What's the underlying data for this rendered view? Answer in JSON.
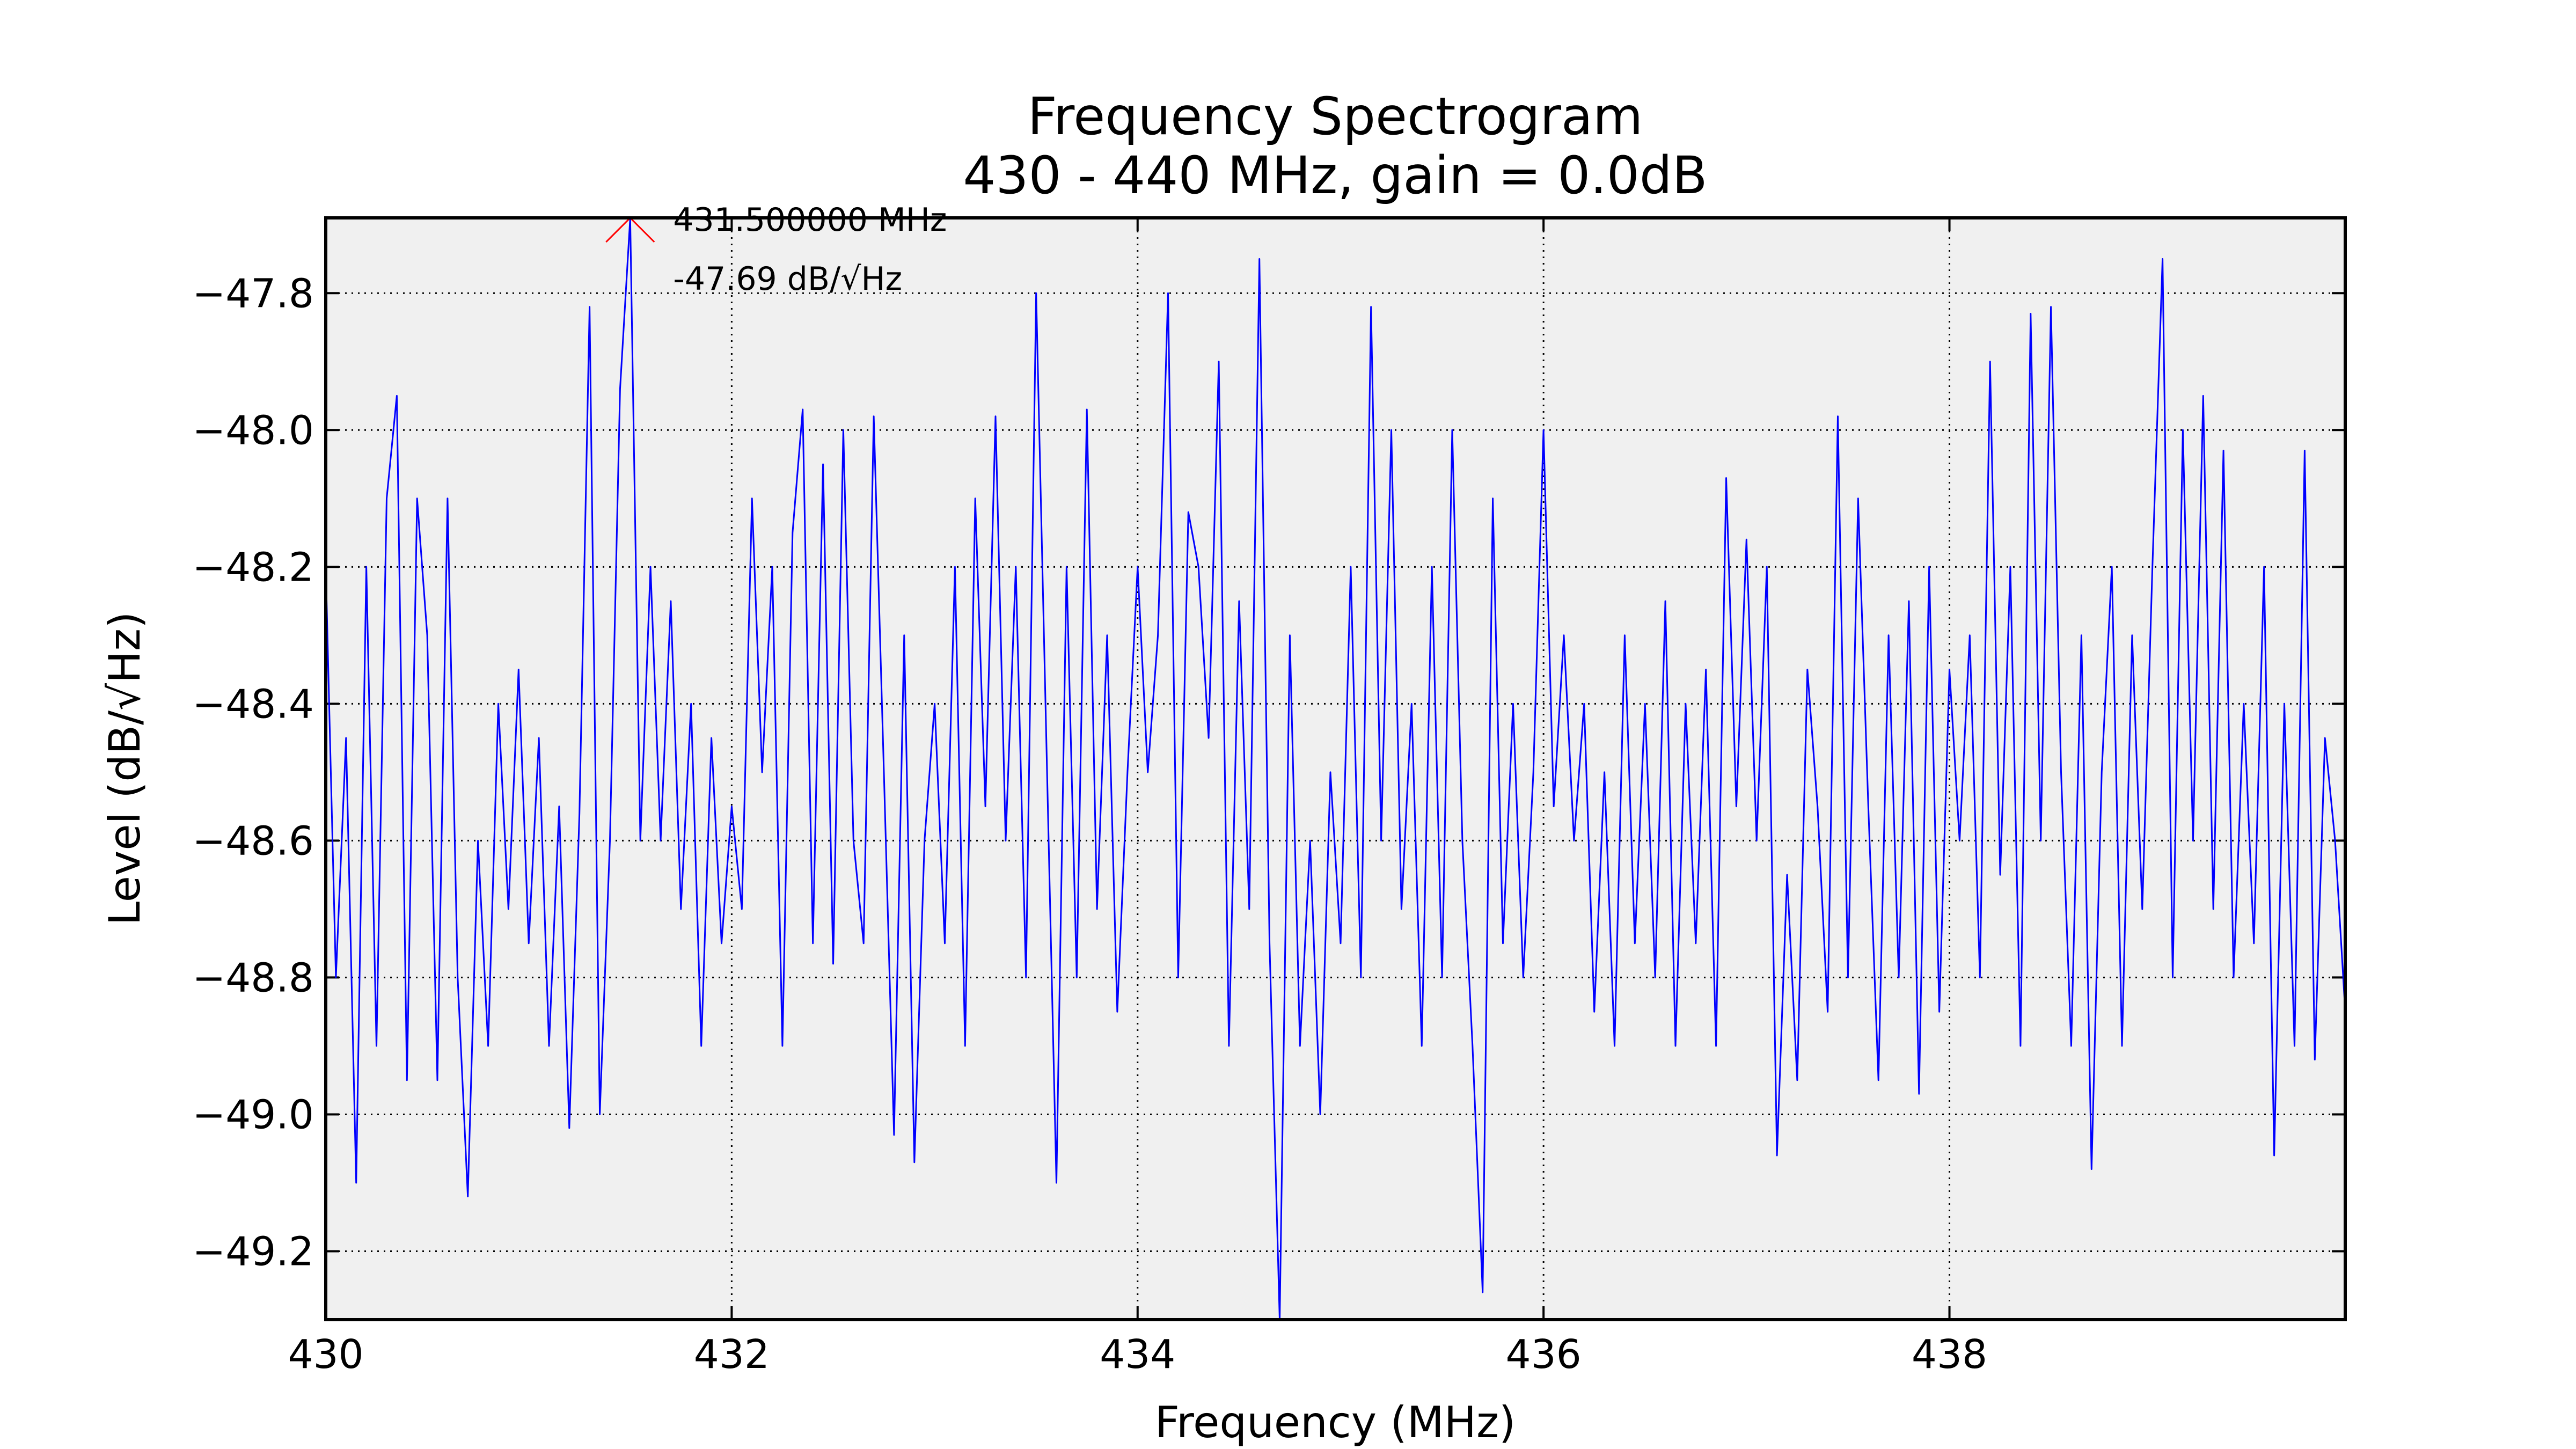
{
  "chart_data": {
    "type": "line",
    "title": "Frequency Spectrogram",
    "subtitle": "430 - 440 MHz, gain = 0.0dB",
    "x_label": "Frequency (MHz)",
    "y_label": "Level (dB/√Hz)",
    "xlim": [
      430,
      439.95
    ],
    "ylim": [
      -49.3,
      -47.69
    ],
    "xticks": [
      430,
      432,
      434,
      436,
      438
    ],
    "yticks": [
      {
        "value": -47.8,
        "label": "−47.8"
      },
      {
        "value": -48.0,
        "label": "−48.0"
      },
      {
        "value": -48.2,
        "label": "−48.2"
      },
      {
        "value": -48.4,
        "label": "−48.4"
      },
      {
        "value": -48.6,
        "label": "−48.6"
      },
      {
        "value": -48.8,
        "label": "−48.8"
      },
      {
        "value": -49.0,
        "label": "−49.0"
      },
      {
        "value": -49.2,
        "label": "−49.2"
      }
    ],
    "grid": true,
    "background": "#f0f0f0",
    "peak": {
      "x": 431.5,
      "y": -47.69,
      "color": "#ff0000",
      "labels": [
        "431.500000 MHz",
        "-47.69 dB/√Hz"
      ]
    },
    "series": [
      {
        "color": "#0000ff",
        "x": [
          430.0,
          430.05,
          430.1,
          430.15,
          430.2,
          430.25,
          430.3,
          430.35,
          430.4,
          430.45,
          430.5,
          430.55,
          430.6,
          430.65,
          430.7,
          430.75,
          430.8,
          430.85,
          430.9,
          430.95,
          431.0,
          431.05,
          431.1,
          431.15,
          431.2,
          431.25,
          431.3,
          431.35,
          431.4,
          431.45,
          431.5,
          431.55,
          431.6,
          431.65,
          431.7,
          431.75,
          431.8,
          431.85,
          431.9,
          431.95,
          432.0,
          432.05,
          432.1,
          432.15,
          432.2,
          432.25,
          432.3,
          432.35,
          432.4,
          432.45,
          432.5,
          432.55,
          432.6,
          432.65,
          432.7,
          432.75,
          432.8,
          432.85,
          432.9,
          432.95,
          433.0,
          433.05,
          433.1,
          433.15,
          433.2,
          433.25,
          433.3,
          433.35,
          433.4,
          433.45,
          433.5,
          433.55,
          433.6,
          433.65,
          433.7,
          433.75,
          433.8,
          433.85,
          433.9,
          433.95,
          434.0,
          434.05,
          434.1,
          434.15,
          434.2,
          434.25,
          434.3,
          434.35,
          434.4,
          434.45,
          434.5,
          434.55,
          434.6,
          434.65,
          434.7,
          434.75,
          434.8,
          434.85,
          434.9,
          434.95,
          435.0,
          435.05,
          435.1,
          435.15,
          435.2,
          435.25,
          435.3,
          435.35,
          435.4,
          435.45,
          435.5,
          435.55,
          435.6,
          435.65,
          435.7,
          435.75,
          435.8,
          435.85,
          435.9,
          435.95,
          436.0,
          436.05,
          436.1,
          436.15,
          436.2,
          436.25,
          436.3,
          436.35,
          436.4,
          436.45,
          436.5,
          436.55,
          436.6,
          436.65,
          436.7,
          436.75,
          436.8,
          436.85,
          436.9,
          436.95,
          437.0,
          437.05,
          437.1,
          437.15,
          437.2,
          437.25,
          437.3,
          437.35,
          437.4,
          437.45,
          437.5,
          437.55,
          437.6,
          437.65,
          437.7,
          437.75,
          437.8,
          437.85,
          437.9,
          437.95,
          438.0,
          438.05,
          438.1,
          438.15,
          438.2,
          438.25,
          438.3,
          438.35,
          438.4,
          438.45,
          438.5,
          438.55,
          438.6,
          438.65,
          438.7,
          438.75,
          438.8,
          438.85,
          438.9,
          438.95,
          439.0,
          439.05,
          439.1,
          439.15,
          439.2,
          439.25,
          439.3,
          439.35,
          439.4,
          439.45,
          439.5,
          439.55,
          439.6,
          439.65,
          439.7,
          439.75,
          439.8,
          439.85,
          439.9,
          439.95
        ],
        "values": [
          -48.2,
          -48.8,
          -48.45,
          -49.1,
          -48.2,
          -48.9,
          -48.1,
          -47.95,
          -48.95,
          -48.1,
          -48.3,
          -48.95,
          -48.1,
          -48.8,
          -49.12,
          -48.6,
          -48.9,
          -48.4,
          -48.7,
          -48.35,
          -48.75,
          -48.45,
          -48.9,
          -48.55,
          -49.02,
          -48.56,
          -47.82,
          -49.0,
          -48.6,
          -47.94,
          -47.69,
          -48.6,
          -48.2,
          -48.6,
          -48.25,
          -48.7,
          -48.4,
          -48.9,
          -48.45,
          -48.75,
          -48.55,
          -48.7,
          -48.1,
          -48.5,
          -48.2,
          -48.9,
          -48.15,
          -47.97,
          -48.75,
          -48.05,
          -48.78,
          -48.0,
          -48.6,
          -48.75,
          -47.98,
          -48.5,
          -49.03,
          -48.3,
          -49.07,
          -48.6,
          -48.4,
          -48.75,
          -48.2,
          -48.9,
          -48.1,
          -48.55,
          -47.98,
          -48.6,
          -48.2,
          -48.8,
          -47.8,
          -48.45,
          -49.1,
          -48.2,
          -48.8,
          -47.97,
          -48.7,
          -48.3,
          -48.85,
          -48.5,
          -48.2,
          -48.5,
          -48.3,
          -47.8,
          -48.8,
          -48.12,
          -48.2,
          -48.45,
          -47.9,
          -48.9,
          -48.25,
          -48.7,
          -47.75,
          -48.75,
          -49.3,
          -48.3,
          -48.9,
          -48.6,
          -49.0,
          -48.5,
          -48.75,
          -48.2,
          -48.8,
          -47.82,
          -48.6,
          -48.0,
          -48.7,
          -48.4,
          -48.9,
          -48.2,
          -48.8,
          -48.0,
          -48.6,
          -48.9,
          -49.26,
          -48.1,
          -48.75,
          -48.4,
          -48.8,
          -48.5,
          -48.0,
          -48.55,
          -48.3,
          -48.6,
          -48.4,
          -48.85,
          -48.5,
          -48.9,
          -48.3,
          -48.75,
          -48.4,
          -48.8,
          -48.25,
          -48.9,
          -48.4,
          -48.75,
          -48.35,
          -48.9,
          -48.07,
          -48.55,
          -48.16,
          -48.6,
          -48.2,
          -49.06,
          -48.65,
          -48.95,
          -48.35,
          -48.55,
          -48.85,
          -47.98,
          -48.8,
          -48.1,
          -48.55,
          -48.95,
          -48.3,
          -48.8,
          -48.25,
          -48.97,
          -48.2,
          -48.85,
          -48.35,
          -48.6,
          -48.3,
          -48.8,
          -47.9,
          -48.65,
          -48.2,
          -48.9,
          -47.83,
          -48.6,
          -47.82,
          -48.5,
          -48.9,
          -48.3,
          -49.08,
          -48.5,
          -48.2,
          -48.9,
          -48.3,
          -48.7,
          -48.2,
          -47.75,
          -48.8,
          -48.0,
          -48.6,
          -47.95,
          -48.7,
          -48.03,
          -48.8,
          -48.4,
          -48.75,
          -48.2,
          -49.06,
          -48.4,
          -48.9,
          -48.03,
          -48.92,
          -48.45,
          -48.6,
          -48.85
        ]
      }
    ]
  }
}
